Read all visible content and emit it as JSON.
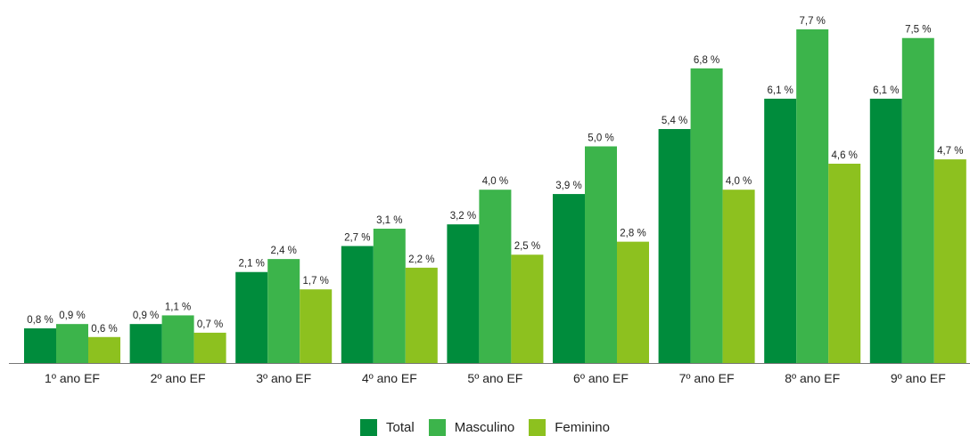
{
  "chart_data": {
    "type": "bar",
    "categories": [
      "1º ano EF",
      "2º ano EF",
      "3º ano EF",
      "4º ano EF",
      "5º ano EF",
      "6º ano EF",
      "7º ano EF",
      "8º ano EF",
      "9º ano EF"
    ],
    "series": [
      {
        "name": "Total",
        "color": "#008C3C",
        "values": [
          0.8,
          0.9,
          2.1,
          2.7,
          3.2,
          3.9,
          5.4,
          6.1,
          6.1
        ],
        "labels": [
          "0,8 %",
          "0,9 %",
          "2,1 %",
          "2,7 %",
          "3,2 %",
          "3,9 %",
          "5,4 %",
          "6,1 %",
          "6,1 %"
        ]
      },
      {
        "name": "Masculino",
        "color": "#3CB44B",
        "values": [
          0.9,
          1.1,
          2.4,
          3.1,
          4.0,
          5.0,
          6.8,
          7.7,
          7.5
        ],
        "labels": [
          "0,9 %",
          "1,1 %",
          "2,4 %",
          "3,1 %",
          "4,0 %",
          "5,0 %",
          "6,8 %",
          "7,7 %",
          "7,5 %"
        ]
      },
      {
        "name": "Feminino",
        "color": "#8DC11F",
        "values": [
          0.6,
          0.7,
          1.7,
          2.2,
          2.5,
          2.8,
          4.0,
          4.6,
          4.7
        ],
        "labels": [
          "0,6 %",
          "0,7 %",
          "1,7 %",
          "2,2 %",
          "2,5 %",
          "2,8 %",
          "4,0 %",
          "4,6 %",
          "4,7 %"
        ]
      }
    ],
    "title": "",
    "xlabel": "",
    "ylabel": "",
    "ylim": [
      0,
      7.7
    ],
    "grid": false,
    "legend_position": "bottom-center",
    "axis_color": "#777777"
  }
}
